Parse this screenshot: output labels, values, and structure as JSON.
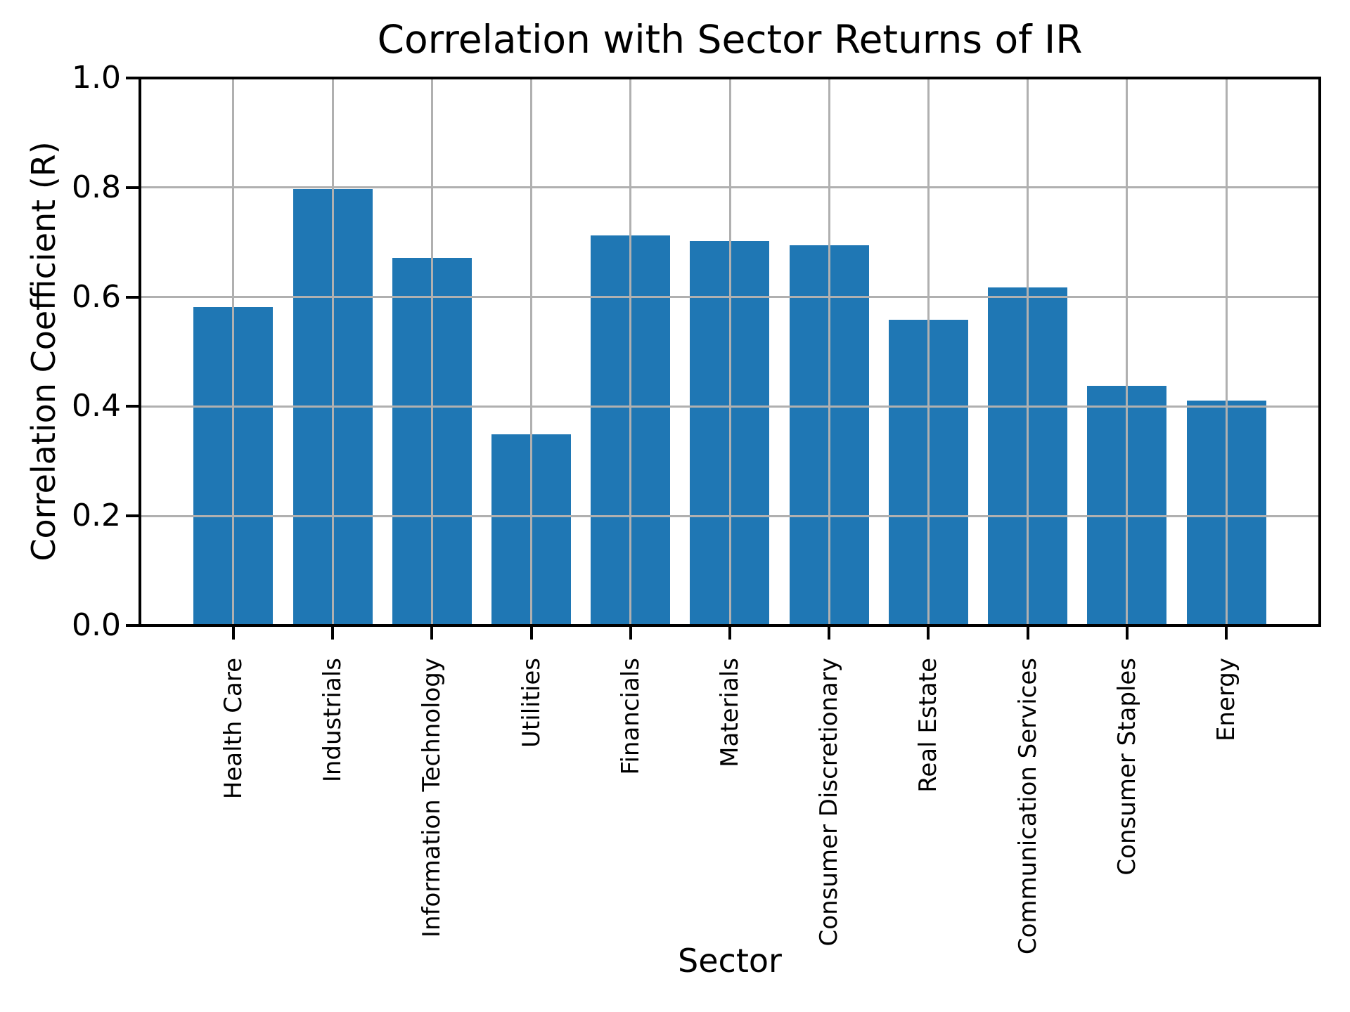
{
  "figure": {
    "background": "#ffffff",
    "text_color": "#000000"
  },
  "chart_data": {
    "type": "bar",
    "title": "Correlation with Sector Returns of IR",
    "xlabel": "Sector",
    "ylabel": "Correlation Coefficient (R)",
    "categories": [
      "Health Care",
      "Industrials",
      "Information Technology",
      "Utilities",
      "Financials",
      "Materials",
      "Consumer Discretionary",
      "Real Estate",
      "Communication Services",
      "Consumer Staples",
      "Energy"
    ],
    "values": [
      0.582,
      0.797,
      0.672,
      0.349,
      0.712,
      0.702,
      0.694,
      0.558,
      0.617,
      0.438,
      0.411
    ],
    "ylim": [
      0.0,
      1.0
    ],
    "yticks": [
      0.0,
      0.2,
      0.4,
      0.6,
      0.8,
      1.0
    ],
    "ytick_labels": [
      "0.0",
      "0.2",
      "0.4",
      "0.6",
      "0.8",
      "1.0"
    ],
    "xtick_rotation": 90,
    "grid": true,
    "legend": false,
    "bar_color": "#1f77b4",
    "grid_color": "#b0b0b0",
    "spine_color": "#000000"
  }
}
